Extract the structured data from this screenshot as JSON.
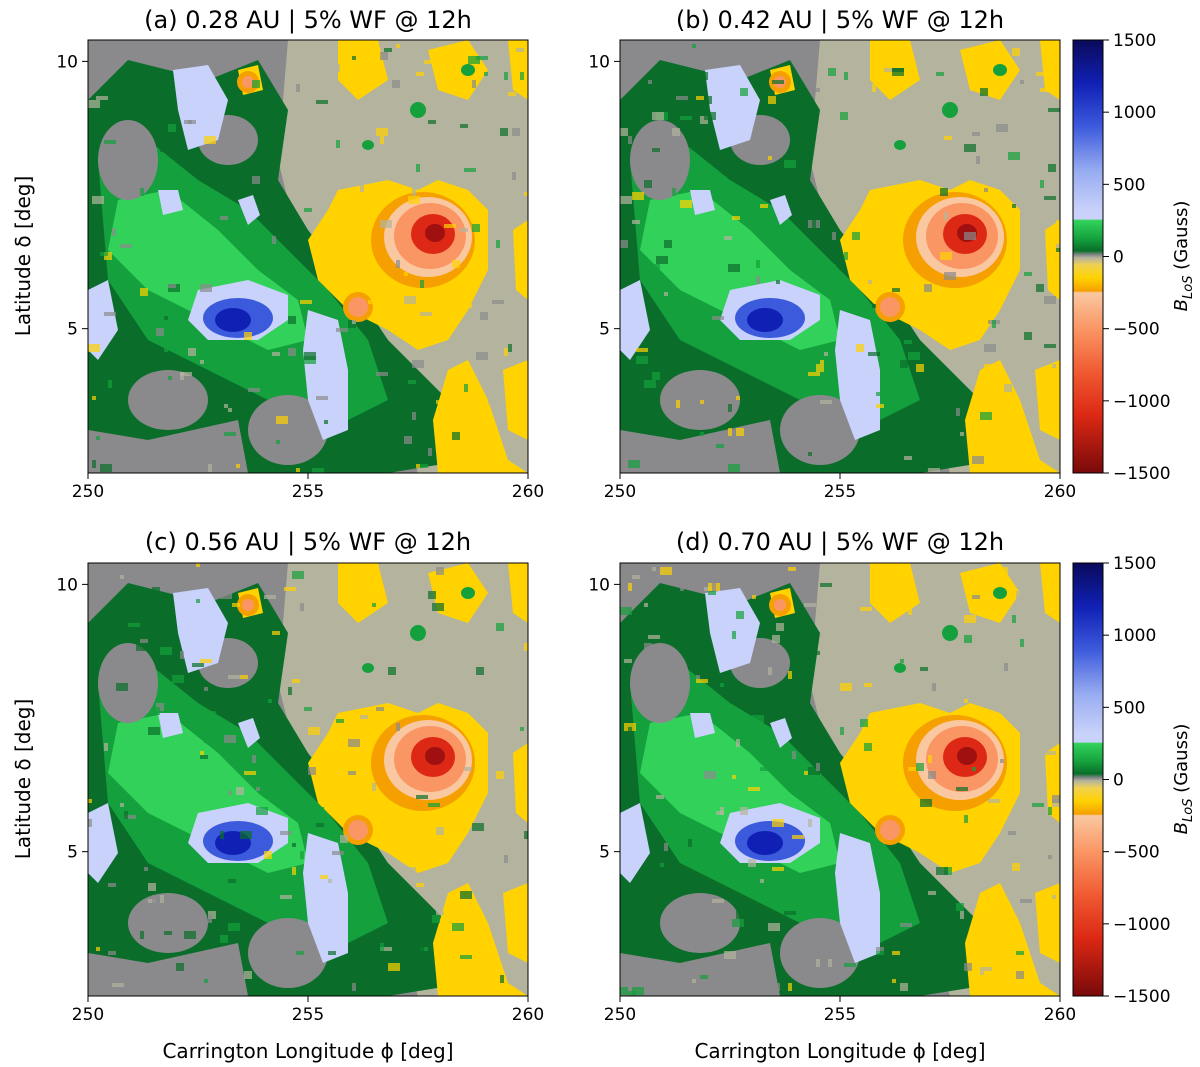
{
  "chart_data": [
    {
      "type": "heatmap",
      "title": "(a) 0.28 AU | 5% WF @ 12h",
      "xlabel": "",
      "ylabel": "Latitude δ [deg]",
      "x_ticks": [
        250,
        255,
        260
      ],
      "y_ticks": [
        5,
        10
      ],
      "xlim": [
        250,
        260
      ],
      "ylim": [
        2.3,
        10.4
      ],
      "colorbar": false
    },
    {
      "type": "heatmap",
      "title": "(b) 0.42 AU | 5% WF @ 12h",
      "xlabel": "",
      "ylabel": "",
      "x_ticks": [
        250,
        255,
        260
      ],
      "y_ticks": [
        5,
        10
      ],
      "xlim": [
        250,
        260
      ],
      "ylim": [
        2.3,
        10.4
      ],
      "colorbar": true
    },
    {
      "type": "heatmap",
      "title": "(c) 0.56 AU | 5% WF @ 12h",
      "xlabel": "Carrington Longitude ϕ [deg]",
      "ylabel": "Latitude δ [deg]",
      "x_ticks": [
        250,
        255,
        260
      ],
      "y_ticks": [
        5,
        10
      ],
      "xlim": [
        250,
        260
      ],
      "ylim": [
        2.3,
        10.4
      ],
      "colorbar": false
    },
    {
      "type": "heatmap",
      "title": "(d) 0.70 AU | 5% WF @ 12h",
      "xlabel": "Carrington Longitude ϕ [deg]",
      "ylabel": "",
      "x_ticks": [
        250,
        255,
        260
      ],
      "y_ticks": [
        5,
        10
      ],
      "xlim": [
        250,
        260
      ],
      "ylim": [
        2.3,
        10.4
      ],
      "colorbar": true
    }
  ],
  "colorbar": {
    "label_main": "B",
    "label_sub": "LoS",
    "label_unit": " (Gauss)",
    "range": [
      -1500,
      1500
    ],
    "ticks": [
      {
        "value": 1500,
        "label": "1500"
      },
      {
        "value": 1000,
        "label": "1000"
      },
      {
        "value": 500,
        "label": "500"
      },
      {
        "value": 0,
        "label": "0"
      },
      {
        "value": -500,
        "label": "−500"
      },
      {
        "value": -1000,
        "label": "−1000"
      },
      {
        "value": -1500,
        "label": "−1500"
      }
    ],
    "stops": [
      {
        "value": 1500,
        "color": "#0a0a5a"
      },
      {
        "value": 1200,
        "color": "#1020b4"
      },
      {
        "value": 900,
        "color": "#3c5adc"
      },
      {
        "value": 600,
        "color": "#96aaf0"
      },
      {
        "value": 320,
        "color": "#c8d2fa"
      },
      {
        "value": 260,
        "color": "#c8d2fa"
      },
      {
        "value": 250,
        "color": "#32d25a"
      },
      {
        "value": 120,
        "color": "#14a03c"
      },
      {
        "value": 40,
        "color": "#0a6e2a"
      },
      {
        "value": 10,
        "color": "#8a8a8c"
      },
      {
        "value": -10,
        "color": "#b4b49e"
      },
      {
        "value": -60,
        "color": "#f0d250"
      },
      {
        "value": -150,
        "color": "#ffd200"
      },
      {
        "value": -240,
        "color": "#f5a000"
      },
      {
        "value": -250,
        "color": "#fac8a0"
      },
      {
        "value": -500,
        "color": "#fa9664"
      },
      {
        "value": -800,
        "color": "#f05a32"
      },
      {
        "value": -1100,
        "color": "#dc2814"
      },
      {
        "value": -1500,
        "color": "#780a0a"
      }
    ]
  },
  "colors": {
    "gray": "#8a8a8c",
    "tan": "#b4b49e",
    "dark_green": "#0a6e2a",
    "green": "#14a03c",
    "light_green": "#32d25a",
    "light_blue": "#c8d2fa",
    "blue": "#3c5adc",
    "dark_blue": "#1020b4",
    "yellow": "#ffd200",
    "orange": "#f5a000",
    "light_red": "#fa9664",
    "red": "#dc2814"
  }
}
